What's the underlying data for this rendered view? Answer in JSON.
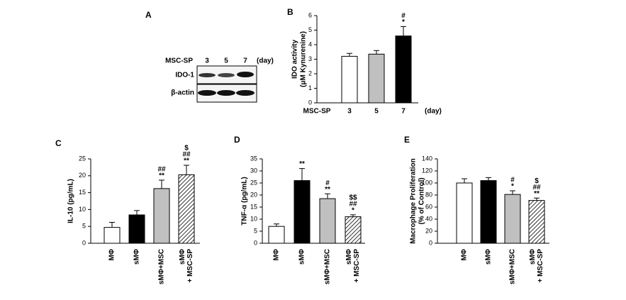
{
  "blot": {
    "panel": "A",
    "xlabel": "MSC-SP",
    "categories": [
      "3",
      "5",
      "7"
    ],
    "xunit": "(day)",
    "rows": [
      "IDO-1",
      "β-actin"
    ]
  },
  "chart_data": [
    {
      "type": "bar",
      "panel": "B",
      "ylabel": [
        "IDO activity",
        "(μM Kynurenine)"
      ],
      "xlabel": "MSC-SP",
      "xunit": "(day)",
      "categories": [
        [
          "3"
        ],
        [
          "5"
        ],
        [
          "7"
        ]
      ],
      "values": [
        3.2,
        3.35,
        4.6
      ],
      "errors": [
        0.2,
        0.25,
        0.65
      ],
      "colors": [
        "#ffffff",
        "#c0c0c0",
        "#000000"
      ],
      "hatch": [
        false,
        false,
        false
      ],
      "annotations": [
        [],
        [],
        [
          "#",
          "*"
        ]
      ],
      "ylim": [
        0,
        6
      ],
      "yticks": [
        0,
        1,
        2,
        3,
        4,
        5,
        6
      ]
    },
    {
      "type": "bar",
      "panel": "C",
      "ylabel": [
        "IL-10 (pg/mL)"
      ],
      "categories": [
        [
          "MΦ"
        ],
        [
          "sMΦ"
        ],
        [
          "sMΦ+MSC"
        ],
        [
          "sMΦ",
          "+ MSC-SP"
        ]
      ],
      "values": [
        4.7,
        8.4,
        16.2,
        20.3
      ],
      "errors": [
        1.5,
        1.3,
        2.5,
        2.8
      ],
      "colors": [
        "#ffffff",
        "#000000",
        "#c0c0c0",
        "#ffffff"
      ],
      "hatch": [
        false,
        false,
        false,
        true
      ],
      "annotations": [
        [],
        [],
        [
          "##",
          "**"
        ],
        [
          "$",
          "##",
          "**"
        ]
      ],
      "ylim": [
        0,
        25
      ],
      "yticks": [
        0,
        5,
        10,
        15,
        20,
        25
      ]
    },
    {
      "type": "bar",
      "panel": "D",
      "ylabel": [
        "TNF-α (pg/mL)"
      ],
      "categories": [
        [
          "MΦ"
        ],
        [
          "sMΦ"
        ],
        [
          "sMΦ+MSC"
        ],
        [
          "sMΦ",
          "+ MSC-SP"
        ]
      ],
      "values": [
        7,
        26,
        18.5,
        11
      ],
      "errors": [
        1,
        5,
        2,
        0.8
      ],
      "colors": [
        "#ffffff",
        "#000000",
        "#c0c0c0",
        "#ffffff"
      ],
      "hatch": [
        false,
        false,
        false,
        true
      ],
      "annotations": [
        [],
        [
          "**"
        ],
        [
          "#",
          "**"
        ],
        [
          "$$",
          "##",
          "*"
        ]
      ],
      "ylim": [
        0,
        35
      ],
      "yticks": [
        0,
        5,
        10,
        15,
        20,
        25,
        30,
        35
      ]
    },
    {
      "type": "bar",
      "panel": "E",
      "ylabel": [
        "Macrophage Proliferation",
        "(% of Control)"
      ],
      "categories": [
        [
          "MΦ"
        ],
        [
          "sMΦ"
        ],
        [
          "sMΦ+MSC"
        ],
        [
          "sMΦ",
          "+ MSC-SP"
        ]
      ],
      "values": [
        100,
        104,
        81,
        71
      ],
      "errors": [
        7,
        5,
        6,
        4
      ],
      "colors": [
        "#ffffff",
        "#000000",
        "#c0c0c0",
        "#ffffff"
      ],
      "hatch": [
        false,
        false,
        false,
        true
      ],
      "annotations": [
        [],
        [],
        [
          "#",
          "*"
        ],
        [
          "$",
          "##",
          "**"
        ]
      ],
      "ylim": [
        0,
        140
      ],
      "yticks": [
        0,
        20,
        40,
        60,
        80,
        100,
        120,
        140
      ]
    }
  ]
}
